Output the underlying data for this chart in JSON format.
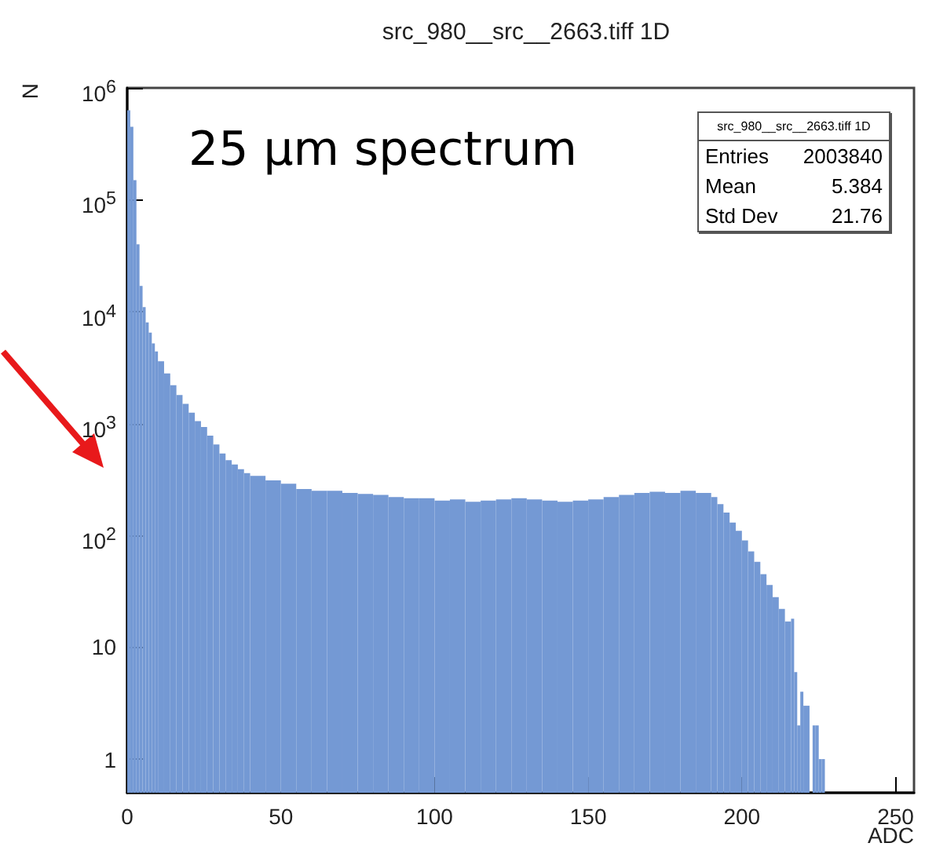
{
  "chart_data": {
    "type": "histogram",
    "title": "src_980__src__2663.tiff 1D",
    "xlabel": "ADC",
    "ylabel": "N",
    "annotations": [
      "25 µm spectrum",
      "src_980__src__2663.tiff 1D",
      "Entries",
      "2003840",
      "Mean",
      "5.384",
      "Std Dev",
      "21.76"
    ],
    "bins": [
      0,
      1,
      2,
      3,
      4,
      5,
      6,
      7,
      8,
      9,
      10,
      12,
      14,
      16,
      18,
      20,
      22,
      24,
      26,
      28,
      30,
      32,
      34,
      36,
      38,
      40,
      45,
      50,
      55,
      60,
      65,
      70,
      75,
      80,
      85,
      90,
      95,
      100,
      105,
      110,
      115,
      120,
      125,
      130,
      135,
      140,
      145,
      150,
      155,
      160,
      165,
      170,
      175,
      180,
      185,
      190,
      192,
      194,
      196,
      198,
      200,
      202,
      204,
      206,
      208,
      210,
      212,
      214,
      216,
      217,
      218,
      219,
      220,
      221,
      222,
      223,
      224,
      225,
      226,
      227
    ],
    "values": [
      630000,
      450000,
      150000,
      40000,
      17000,
      11000,
      8000,
      6500,
      5200,
      4400,
      3600,
      2800,
      2200,
      1800,
      1500,
      1250,
      1050,
      930,
      780,
      650,
      540,
      470,
      430,
      390,
      360,
      340,
      310,
      290,
      260,
      250,
      250,
      240,
      235,
      230,
      220,
      215,
      215,
      205,
      210,
      200,
      205,
      210,
      215,
      210,
      205,
      200,
      205,
      210,
      220,
      230,
      240,
      245,
      240,
      250,
      240,
      220,
      190,
      160,
      130,
      110,
      90,
      72,
      58,
      45,
      36,
      28,
      22,
      17,
      18,
      6,
      2,
      4,
      3,
      3,
      null,
      2,
      2,
      1,
      1
    ],
    "color": "#7499d4",
    "log": "y",
    "xlim": [
      0,
      256
    ],
    "xticks": [
      0,
      50,
      100,
      150,
      200,
      250
    ],
    "ylim": [
      0.5,
      1000000
    ],
    "yticks": [
      1,
      10,
      {
        "value": 100,
        "label": "10$^{2}$"
      },
      {
        "value": 1000,
        "label": "10$^{3}$"
      },
      {
        "value": 10000,
        "label": "10$^{4}$"
      },
      {
        "value": 100000,
        "label": "10$^{5}$"
      },
      {
        "value": 1000000,
        "label": "10$^{6}$"
      }
    ],
    "grid": false
  }
}
